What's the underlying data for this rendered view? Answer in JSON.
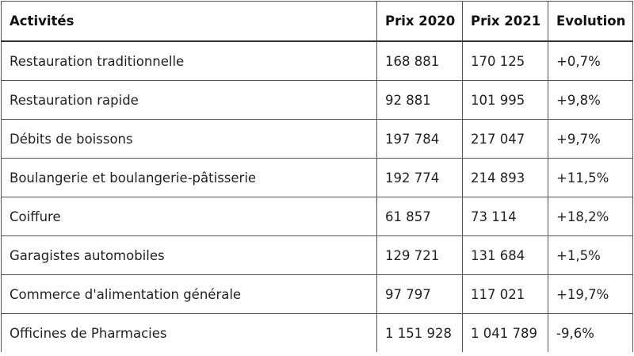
{
  "table": {
    "headers": [
      "Activités",
      "Prix 2020",
      "Prix 2021",
      "Evolution"
    ],
    "rows": [
      [
        "Restauration traditionnelle",
        "168 881",
        "170 125",
        "+0,7%"
      ],
      [
        "Restauration rapide",
        "92 881",
        "101 995",
        "+9,8%"
      ],
      [
        "Débits de boissons",
        "197 784",
        "217 047",
        "+9,7%"
      ],
      [
        "Boulangerie et boulangerie-pâtisserie",
        "192 774",
        "214 893",
        "+11,5%"
      ],
      [
        "Coiffure",
        "61 857",
        "73 114",
        "+18,2%"
      ],
      [
        "Garagistes automobiles",
        "129 721",
        "131 684",
        "+1,5%"
      ],
      [
        "Commerce d'alimentation générale",
        "97 797",
        "117 021",
        "+19,7%"
      ],
      [
        "Officines de Pharmacies",
        "1 151 928",
        "1 041 789",
        "-9,6%"
      ]
    ]
  }
}
